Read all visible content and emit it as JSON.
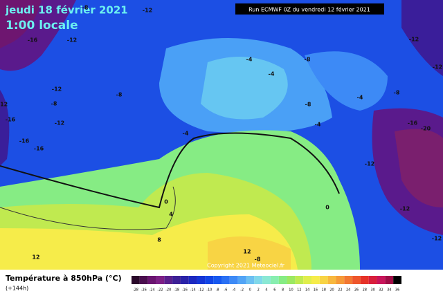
{
  "header": {
    "date": "jeudi 18 février 2021",
    "time": "1:00 locale",
    "run": "Run ECMWF 0Z du vendredi 12 février 2021"
  },
  "map": {
    "contour_labels": [
      "-8",
      "-12",
      "-16",
      "-12",
      "-12",
      "-12",
      "-4",
      "-8",
      "-4",
      "-12",
      "-8",
      "-8",
      "-4",
      "-8",
      "-12",
      "-8",
      "-16",
      "-12",
      "-16",
      "-20",
      "-4",
      "-4",
      "-16",
      "-16",
      "-12",
      "0",
      "0",
      "4",
      "-12",
      "8",
      "-12",
      "12",
      "-8",
      "12"
    ],
    "copyright": "Copyright 2021 Meteociel.fr"
  },
  "legend": {
    "title": "Température à 850hPa (°C)",
    "lead": "(+144h)",
    "labels": [
      "-28",
      "-26",
      "-24",
      "-22",
      "-20",
      "-18",
      "-16",
      "-14",
      "-12",
      "-10",
      "-8",
      "-6",
      "-4",
      "-2",
      "0",
      "2",
      "4",
      "6",
      "8",
      "10",
      "12",
      "14",
      "16",
      "18",
      "20",
      "22",
      "24",
      "26",
      "28",
      "30",
      "32",
      "34",
      "36"
    ],
    "colors": [
      "#2b0a2b",
      "#4a0e4e",
      "#6a1470",
      "#7d1f86",
      "#5a1f8c",
      "#3d2096",
      "#2a22a8",
      "#1c28c0",
      "#1535d6",
      "#1245e6",
      "#1758f0",
      "#2a70f4",
      "#3d8af6",
      "#52a4f6",
      "#6cc0f2",
      "#80d8ea",
      "#8ae8d4",
      "#88eeb0",
      "#86ec84",
      "#9ce862",
      "#c0ea50",
      "#e0ee4c",
      "#f6ec4a",
      "#f8d444",
      "#f8b83e",
      "#f69a38",
      "#f27832",
      "#ee562c",
      "#e63228",
      "#d81e3c",
      "#c8145a",
      "#a00c46",
      "#000000"
    ]
  }
}
